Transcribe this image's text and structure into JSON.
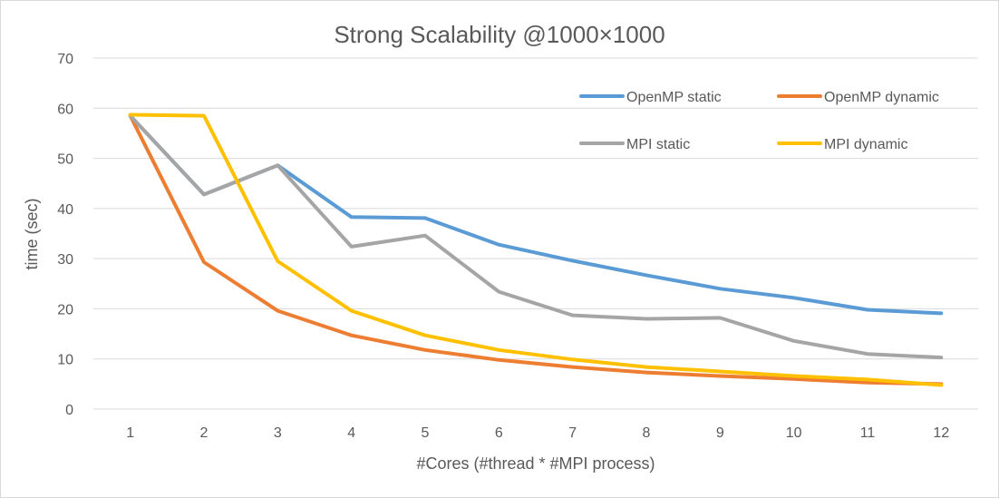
{
  "chart_data": {
    "type": "line",
    "title": "Strong Scalability @1000×1000",
    "xlabel": "#Cores (#thread * #MPI process)",
    "ylabel": "time (sec)",
    "categories": [
      "1",
      "2",
      "3",
      "4",
      "5",
      "6",
      "7",
      "8",
      "9",
      "10",
      "11",
      "12"
    ],
    "ylim": [
      0,
      70
    ],
    "yticks": [
      "0",
      "10",
      "20",
      "30",
      "40",
      "50",
      "60",
      "70"
    ],
    "grid": true,
    "legend_position": "top-right",
    "series": [
      {
        "name": "OpenMP static",
        "color": "#5b9bd5",
        "values": [
          58.5,
          42.8,
          48.6,
          38.3,
          38.1,
          32.8,
          29.6,
          26.7,
          24.0,
          22.2,
          19.8,
          19.1
        ]
      },
      {
        "name": "OpenMP dynamic",
        "color": "#ed7d31",
        "values": [
          58.5,
          29.3,
          19.6,
          14.7,
          11.8,
          9.8,
          8.4,
          7.3,
          6.6,
          6.0,
          5.3,
          5.0
        ]
      },
      {
        "name": "MPI static",
        "color": "#a5a5a5",
        "values": [
          58.5,
          42.8,
          48.6,
          32.4,
          34.6,
          23.4,
          18.7,
          18.0,
          18.2,
          13.6,
          11.0,
          10.3
        ]
      },
      {
        "name": "MPI dynamic",
        "color": "#ffc000",
        "values": [
          58.7,
          58.5,
          29.5,
          19.6,
          14.7,
          11.8,
          9.9,
          8.4,
          7.5,
          6.6,
          5.9,
          4.8
        ]
      }
    ]
  }
}
